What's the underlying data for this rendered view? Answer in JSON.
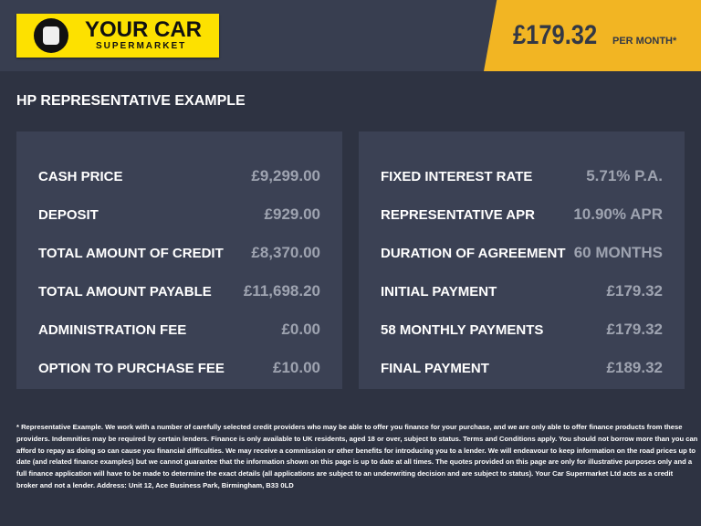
{
  "header": {
    "logo_text": "YOUR CAR",
    "logo_sub": "SUPERMARKET",
    "price": "£179.32",
    "per_month": "PER MONTH*"
  },
  "title": "HP REPRESENTATIVE EXAMPLE",
  "left": [
    {
      "label": "CASH PRICE",
      "value": "£9,299.00"
    },
    {
      "label": "DEPOSIT",
      "value": "£929.00"
    },
    {
      "label": "TOTAL AMOUNT OF CREDIT",
      "value": "£8,370.00"
    },
    {
      "label": "TOTAL AMOUNT PAYABLE",
      "value": "£11,698.20"
    },
    {
      "label": "ADMINISTRATION FEE",
      "value": "£0.00"
    },
    {
      "label": "OPTION TO PURCHASE FEE",
      "value": "£10.00"
    }
  ],
  "right": [
    {
      "label": "FIXED INTEREST RATE",
      "value": "5.71% P.A."
    },
    {
      "label": "REPRESENTATIVE APR",
      "value": "10.90% APR"
    },
    {
      "label": "DURATION OF AGREEMENT",
      "value": "60 MONTHS"
    },
    {
      "label": "INITIAL PAYMENT",
      "value": "£179.32"
    },
    {
      "label": "58 MONTHLY PAYMENTS",
      "value": "£179.32"
    },
    {
      "label": "FINAL PAYMENT",
      "value": "£189.32"
    }
  ],
  "footer": [
    "* Representative Example. We work with a number of carefully selected credit providers who may be able to offer you finance for your purchase, and we are only able to offer finance products from these",
    "providers. Indemnities may be required by certain lenders. Finance is only available to UK residents, aged 18 or over, subject to status. Terms and Conditions apply. You should not borrow more than you can",
    "afford to repay as doing so can cause you financial difficulties. We may receive a commission or other benefits for introducing you to a lender. We will endeavour to keep information on the road prices up to",
    "date (and related finance examples) but we cannot guarantee that the information shown on this page is up to date at all times. The quotes provided on this page are only for illustrative purposes only and a",
    "full finance application will have to be made to determine the exact details (all applications are subject to an underwriting decision and are subject to status). Your Car Supermarket Ltd acts as a credit",
    "broker and not a lender. Address: Unit 12, Ace Business Park, Birmingham, B33 0LD"
  ]
}
